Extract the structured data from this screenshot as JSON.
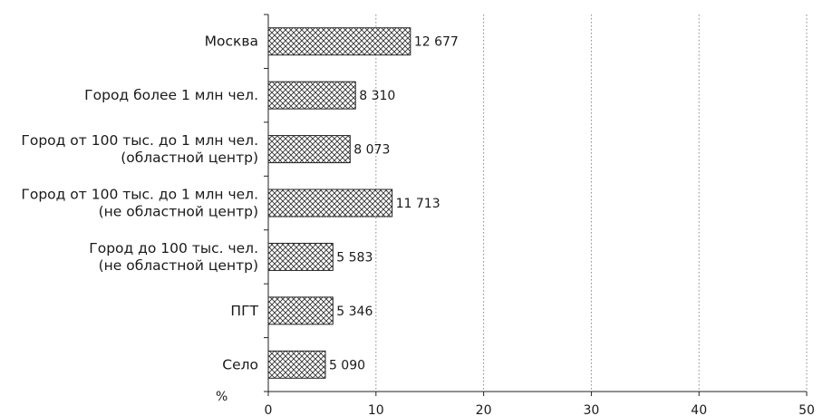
{
  "chart_data": {
    "type": "bar",
    "orientation": "horizontal",
    "categories": [
      [
        "Москва"
      ],
      [
        "Город более 1 млн чел."
      ],
      [
        "Город от 100 тыс. до 1 млн чел.",
        "(областной центр)"
      ],
      [
        "Город от 100 тыс. до 1 млн чел.",
        "(не областной центр)"
      ],
      [
        "Город до 100 тыс. чел.",
        "(не областной центр)"
      ],
      [
        "ПГТ"
      ],
      [
        "Село"
      ]
    ],
    "values": [
      13.2,
      8.1,
      7.6,
      11.5,
      6.0,
      6.0,
      5.3
    ],
    "value_labels": [
      "12 677",
      "8 310",
      "8 073",
      "11 713",
      "5 583",
      "5 346",
      "5 090"
    ],
    "x_unit_label": "%",
    "xlim": [
      0,
      50
    ],
    "xticks": [
      0,
      10,
      20,
      30,
      40,
      50
    ],
    "grid": "vertical-dotted",
    "bar_pattern": "crosshatch",
    "colors": {
      "bar_fill": "#ffffff",
      "bar_stroke": "#222222",
      "hatch": "#333333",
      "axis": "#222222",
      "grid": "#888888"
    }
  }
}
